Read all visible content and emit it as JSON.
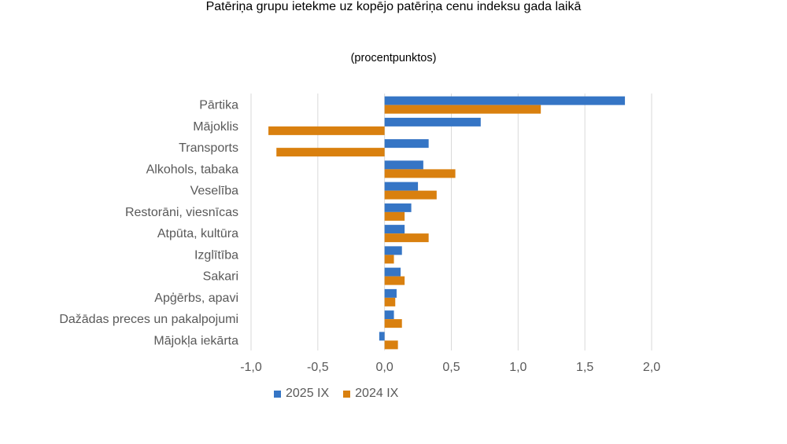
{
  "chart_data": {
    "type": "bar",
    "orientation": "horizontal",
    "title": "Patēriņa grupu ietekme uz kopējo patēriņa cenu indeksu gada laikā",
    "subtitle": "(procentpunktos)",
    "categories": [
      "Pārtika",
      "Mājoklis",
      "Transports",
      "Alkohols, tabaka",
      "Veselība",
      "Restorāni, viesnīcas",
      "Atpūta, kultūra",
      "Izglītība",
      "Sakari",
      "Apģērbs, apavi",
      "Dažādas preces un pakalpojumi",
      "Mājokļa iekārta"
    ],
    "series": [
      {
        "name": "2025 IX",
        "color": "#3575C5",
        "values": [
          1.8,
          0.72,
          0.33,
          0.29,
          0.25,
          0.2,
          0.15,
          0.13,
          0.12,
          0.09,
          0.07,
          -0.04
        ]
      },
      {
        "name": "2024 IX",
        "color": "#D9800F",
        "values": [
          1.17,
          -0.87,
          -0.81,
          0.53,
          0.39,
          0.15,
          0.33,
          0.07,
          0.15,
          0.08,
          0.13,
          0.1
        ]
      }
    ],
    "xlim": [
      -1.0,
      2.0
    ],
    "xticks": [
      "-1,0",
      "-0,5",
      "0,0",
      "0,5",
      "1,0",
      "1,5",
      "2,0"
    ],
    "grid": true,
    "legend_position": "bottom"
  }
}
